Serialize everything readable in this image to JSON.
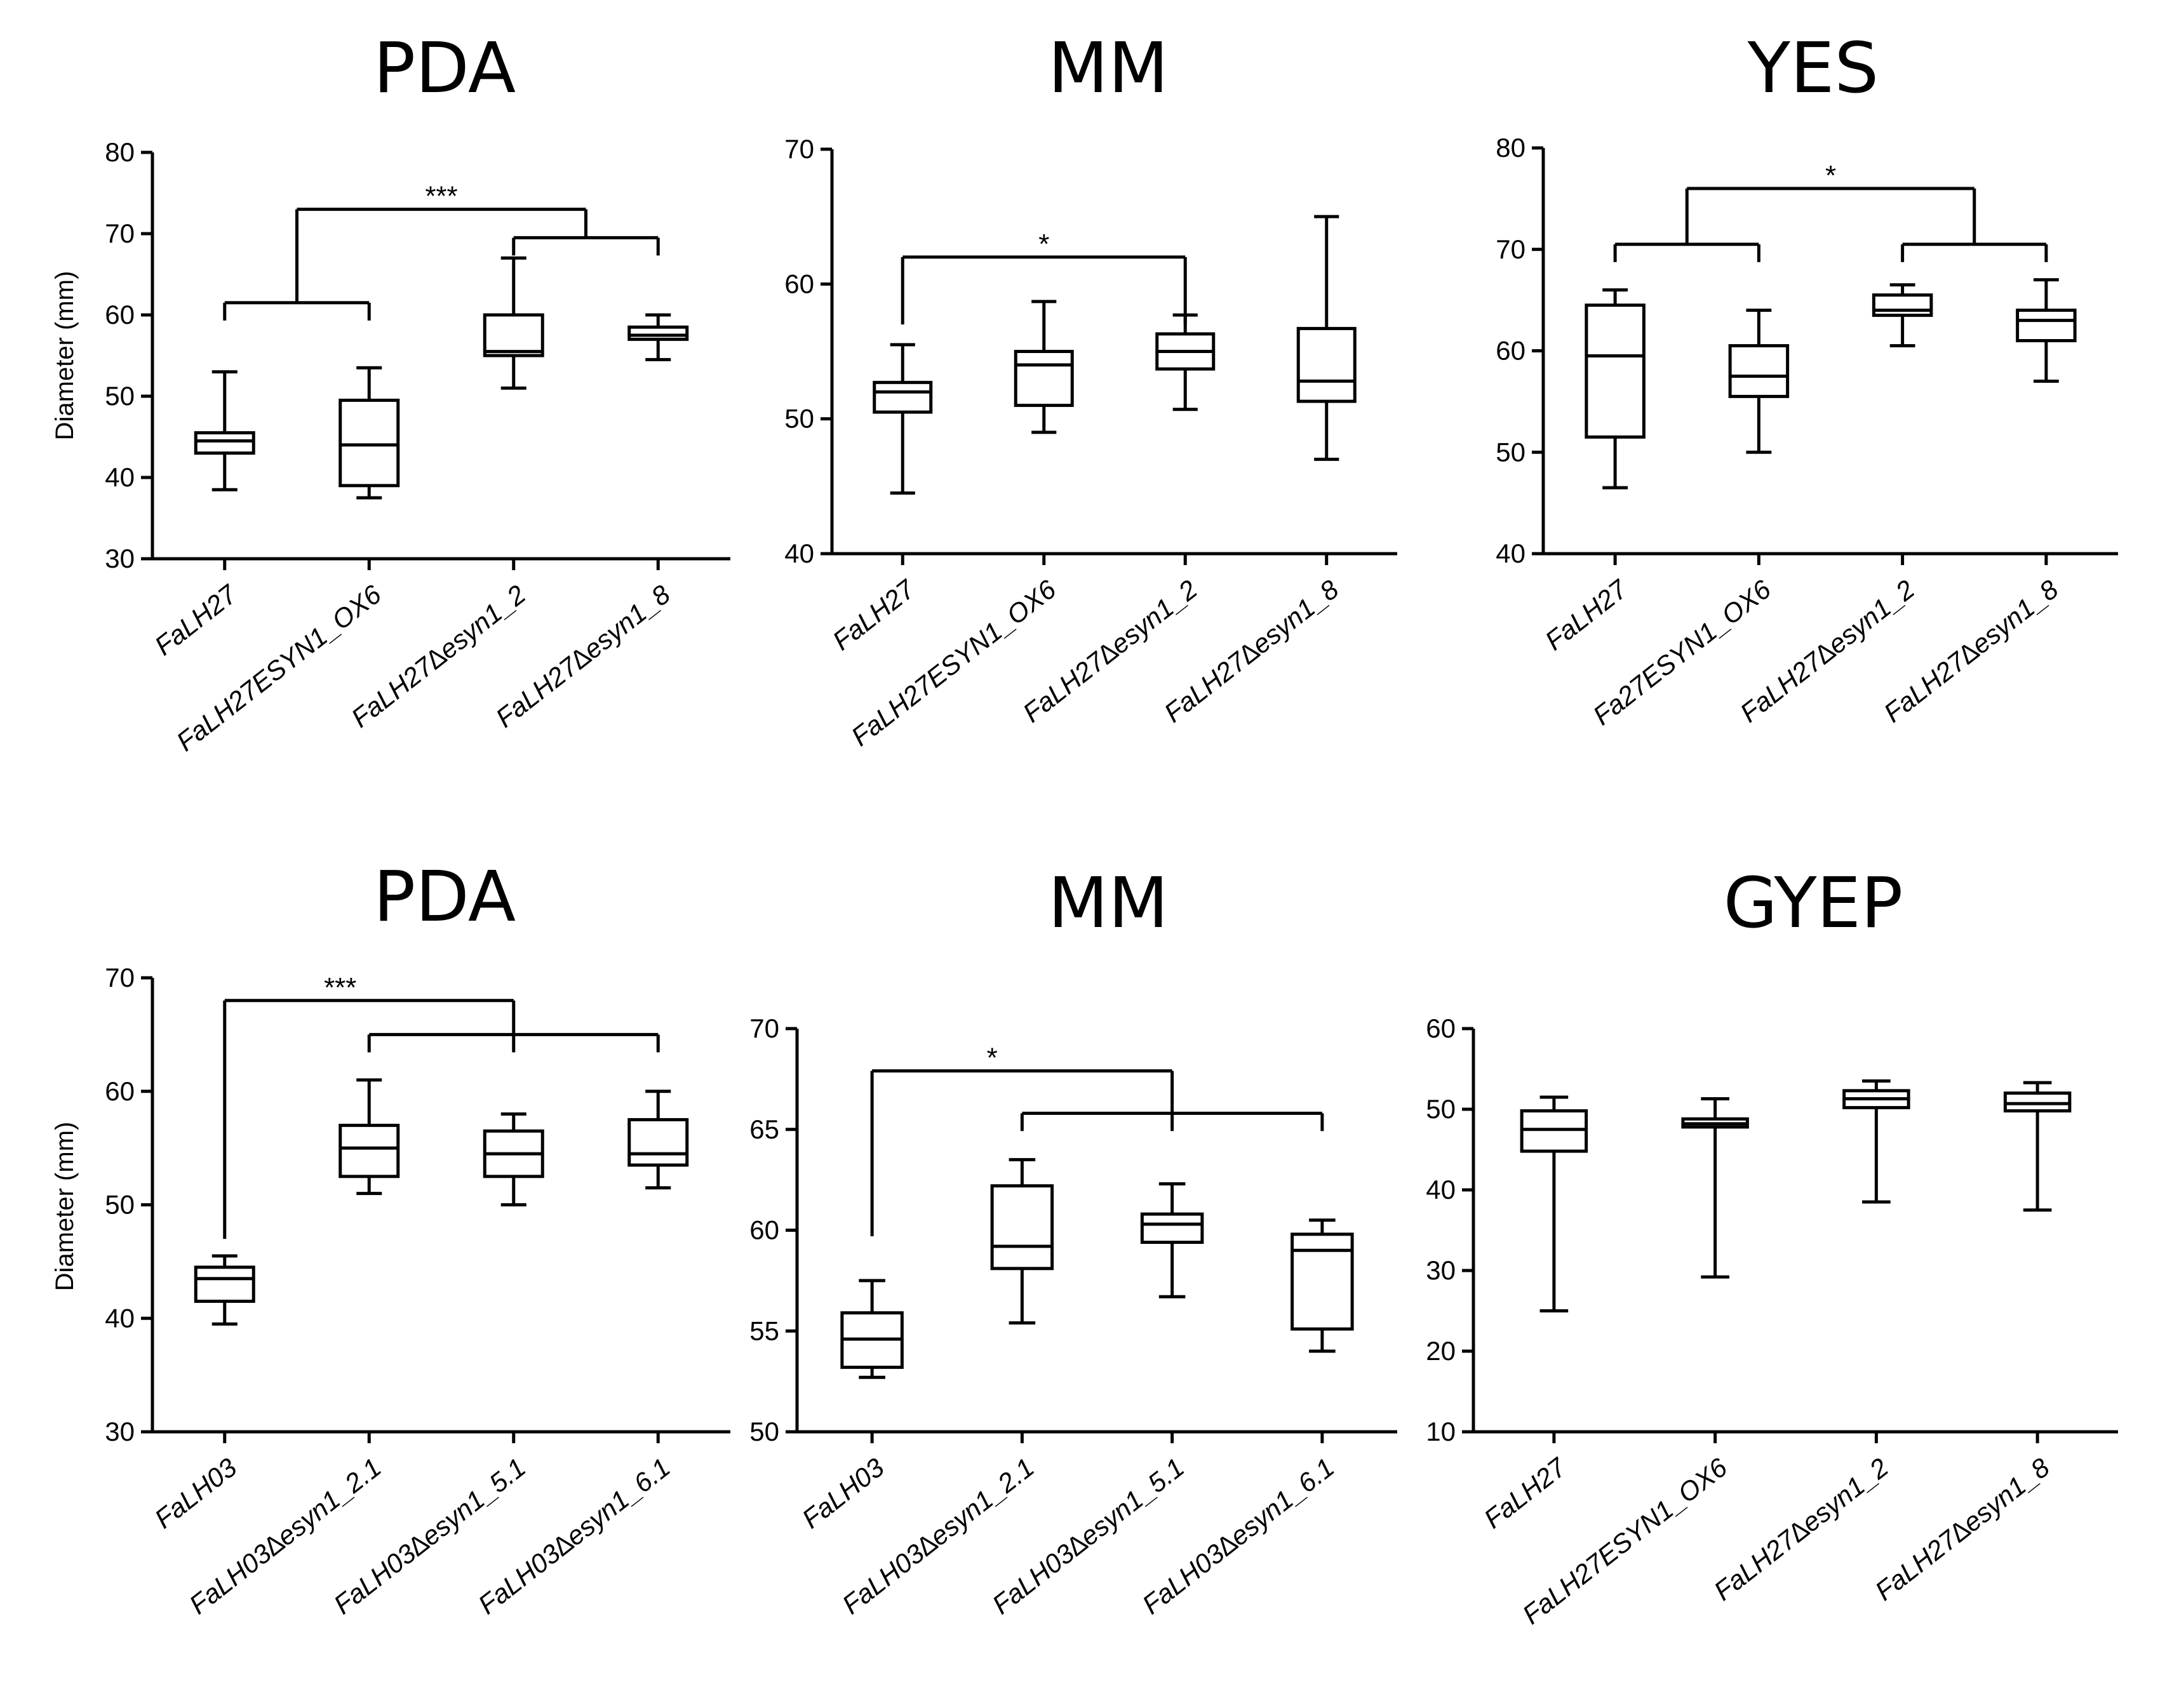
{
  "chart_data": [
    {
      "type": "box",
      "title": "PDA",
      "ylabel": "Diameter (mm)",
      "ylim": [
        30,
        80
      ],
      "yticks": [
        30,
        40,
        50,
        60,
        70,
        80
      ],
      "categories": [
        "FaLH27",
        "FaLH27ESYN1_OX6",
        "FaLH27∆esyn1_2",
        "FaLH27∆esyn1_8"
      ],
      "boxes": [
        {
          "min": 38.5,
          "q1": 43.0,
          "median": 44.5,
          "q3": 45.5,
          "max": 53.0
        },
        {
          "min": 37.5,
          "q1": 39.0,
          "median": 44.0,
          "q3": 49.5,
          "max": 53.5
        },
        {
          "min": 51.0,
          "q1": 55.0,
          "median": 55.5,
          "q3": 60.0,
          "max": 67.0
        },
        {
          "min": 54.5,
          "q1": 57.0,
          "median": 57.5,
          "q3": 58.5,
          "max": 60.0
        }
      ],
      "brackets": [
        {
          "left": [
            0,
            1
          ],
          "right": [
            2,
            3
          ],
          "left_y": 61.5,
          "right_y": 69.5,
          "top_y": 73.0,
          "label": "***"
        }
      ]
    },
    {
      "type": "box",
      "title": "MM",
      "ylabel": "",
      "ylim": [
        40,
        70
      ],
      "yticks": [
        40,
        50,
        60,
        70
      ],
      "categories": [
        "FaLH27",
        "FaLH27ESYN1_OX6",
        "FaLH27∆esyn1_2",
        "FaLH27∆esyn1_8"
      ],
      "boxes": [
        {
          "min": 44.5,
          "q1": 50.5,
          "median": 52.0,
          "q3": 52.7,
          "max": 55.5
        },
        {
          "min": 49.0,
          "q1": 51.0,
          "median": 54.0,
          "q3": 55.0,
          "max": 58.7
        },
        {
          "min": 50.7,
          "q1": 53.7,
          "median": 55.0,
          "q3": 56.3,
          "max": 57.7
        },
        {
          "min": 47.0,
          "q1": 51.3,
          "median": 52.8,
          "q3": 56.7,
          "max": 65.0
        }
      ],
      "brackets": [
        {
          "left": [
            0
          ],
          "right": [
            2
          ],
          "left_y": 57.0,
          "right_y": 57.0,
          "top_y": 62.0,
          "label": "*"
        }
      ]
    },
    {
      "type": "box",
      "title": "YES",
      "ylabel": "",
      "ylim": [
        40,
        80
      ],
      "yticks": [
        40,
        50,
        60,
        70,
        80
      ],
      "categories": [
        "FaLH27",
        "Fa27ESYN1_OX6",
        "FaLH27∆esyn1_2",
        "FaLH27∆esyn1_8"
      ],
      "boxes": [
        {
          "min": 46.5,
          "q1": 51.5,
          "median": 59.5,
          "q3": 64.5,
          "max": 66.0
        },
        {
          "min": 50.0,
          "q1": 55.5,
          "median": 57.5,
          "q3": 60.5,
          "max": 64.0
        },
        {
          "min": 60.5,
          "q1": 63.5,
          "median": 64.0,
          "q3": 65.5,
          "max": 66.5
        },
        {
          "min": 57.0,
          "q1": 61.0,
          "median": 63.0,
          "q3": 64.0,
          "max": 67.0
        }
      ],
      "brackets": [
        {
          "left": [
            0,
            1
          ],
          "right": [
            2,
            3
          ],
          "left_y": 70.5,
          "right_y": 70.5,
          "top_y": 76.0,
          "label": "*"
        }
      ]
    },
    {
      "type": "box",
      "title": "PDA",
      "ylabel": "Diameter (mm)",
      "ylim": [
        30,
        70
      ],
      "yticks": [
        30,
        40,
        50,
        60,
        70
      ],
      "categories": [
        "FaLH03",
        "FaLH03∆esyn1_2.1",
        "FaLH03∆esyn1_5.1",
        "FaLH03∆esyn1_6.1"
      ],
      "boxes": [
        {
          "min": 39.5,
          "q1": 41.5,
          "median": 43.5,
          "q3": 44.5,
          "max": 45.5
        },
        {
          "min": 51.0,
          "q1": 52.5,
          "median": 55.0,
          "q3": 57.0,
          "max": 61.0
        },
        {
          "min": 50.0,
          "q1": 52.5,
          "median": 54.5,
          "q3": 56.5,
          "max": 58.0
        },
        {
          "min": 51.5,
          "q1": 53.5,
          "median": 54.5,
          "q3": 57.5,
          "max": 60.0
        }
      ],
      "brackets": [
        {
          "left": [
            0
          ],
          "right": [
            1,
            2,
            3
          ],
          "left_y": 47.0,
          "right_y": 65.0,
          "top_y": 68.0,
          "label": "***",
          "label_pos": 0.4
        }
      ]
    },
    {
      "type": "box",
      "title": "MM",
      "ylabel": "",
      "ylim": [
        50,
        70
      ],
      "yticks": [
        50,
        55,
        60,
        65,
        70
      ],
      "categories": [
        "FaLH03",
        "FaLH03∆esyn1_2.1",
        "FaLH03∆esyn1_5.1",
        "FaLH03∆esyn1_6.1"
      ],
      "boxes": [
        {
          "min": 52.7,
          "q1": 53.2,
          "median": 54.6,
          "q3": 55.9,
          "max": 57.5
        },
        {
          "min": 55.4,
          "q1": 58.1,
          "median": 59.2,
          "q3": 62.2,
          "max": 63.5
        },
        {
          "min": 56.7,
          "q1": 59.4,
          "median": 60.3,
          "q3": 60.8,
          "max": 62.3
        },
        {
          "min": 54.0,
          "q1": 55.1,
          "median": 59.0,
          "q3": 59.8,
          "max": 60.5
        }
      ],
      "brackets": [
        {
          "left": [
            0
          ],
          "right": [
            1,
            2,
            3
          ],
          "left_y": 59.7,
          "right_y": 65.8,
          "top_y": 67.9,
          "label": "*",
          "label_pos": 0.4
        }
      ]
    },
    {
      "type": "box",
      "title": "GYEP",
      "ylabel": "",
      "ylim": [
        10,
        60
      ],
      "yticks": [
        10,
        20,
        30,
        40,
        50,
        60
      ],
      "categories": [
        "FaLH27",
        "FaLH27ESYN1_OX6",
        "FaLH27∆esyn1_2",
        "FaLH27∆esyn1_8"
      ],
      "boxes": [
        {
          "min": 25.0,
          "q1": 44.8,
          "median": 47.5,
          "q3": 49.8,
          "max": 51.5
        },
        {
          "min": 29.2,
          "q1": 47.8,
          "median": 48.2,
          "q3": 48.8,
          "max": 51.3
        },
        {
          "min": 38.5,
          "q1": 50.2,
          "median": 51.3,
          "q3": 52.3,
          "max": 53.5
        },
        {
          "min": 37.5,
          "q1": 49.8,
          "median": 50.7,
          "q3": 52.0,
          "max": 53.3
        }
      ],
      "brackets": []
    }
  ]
}
